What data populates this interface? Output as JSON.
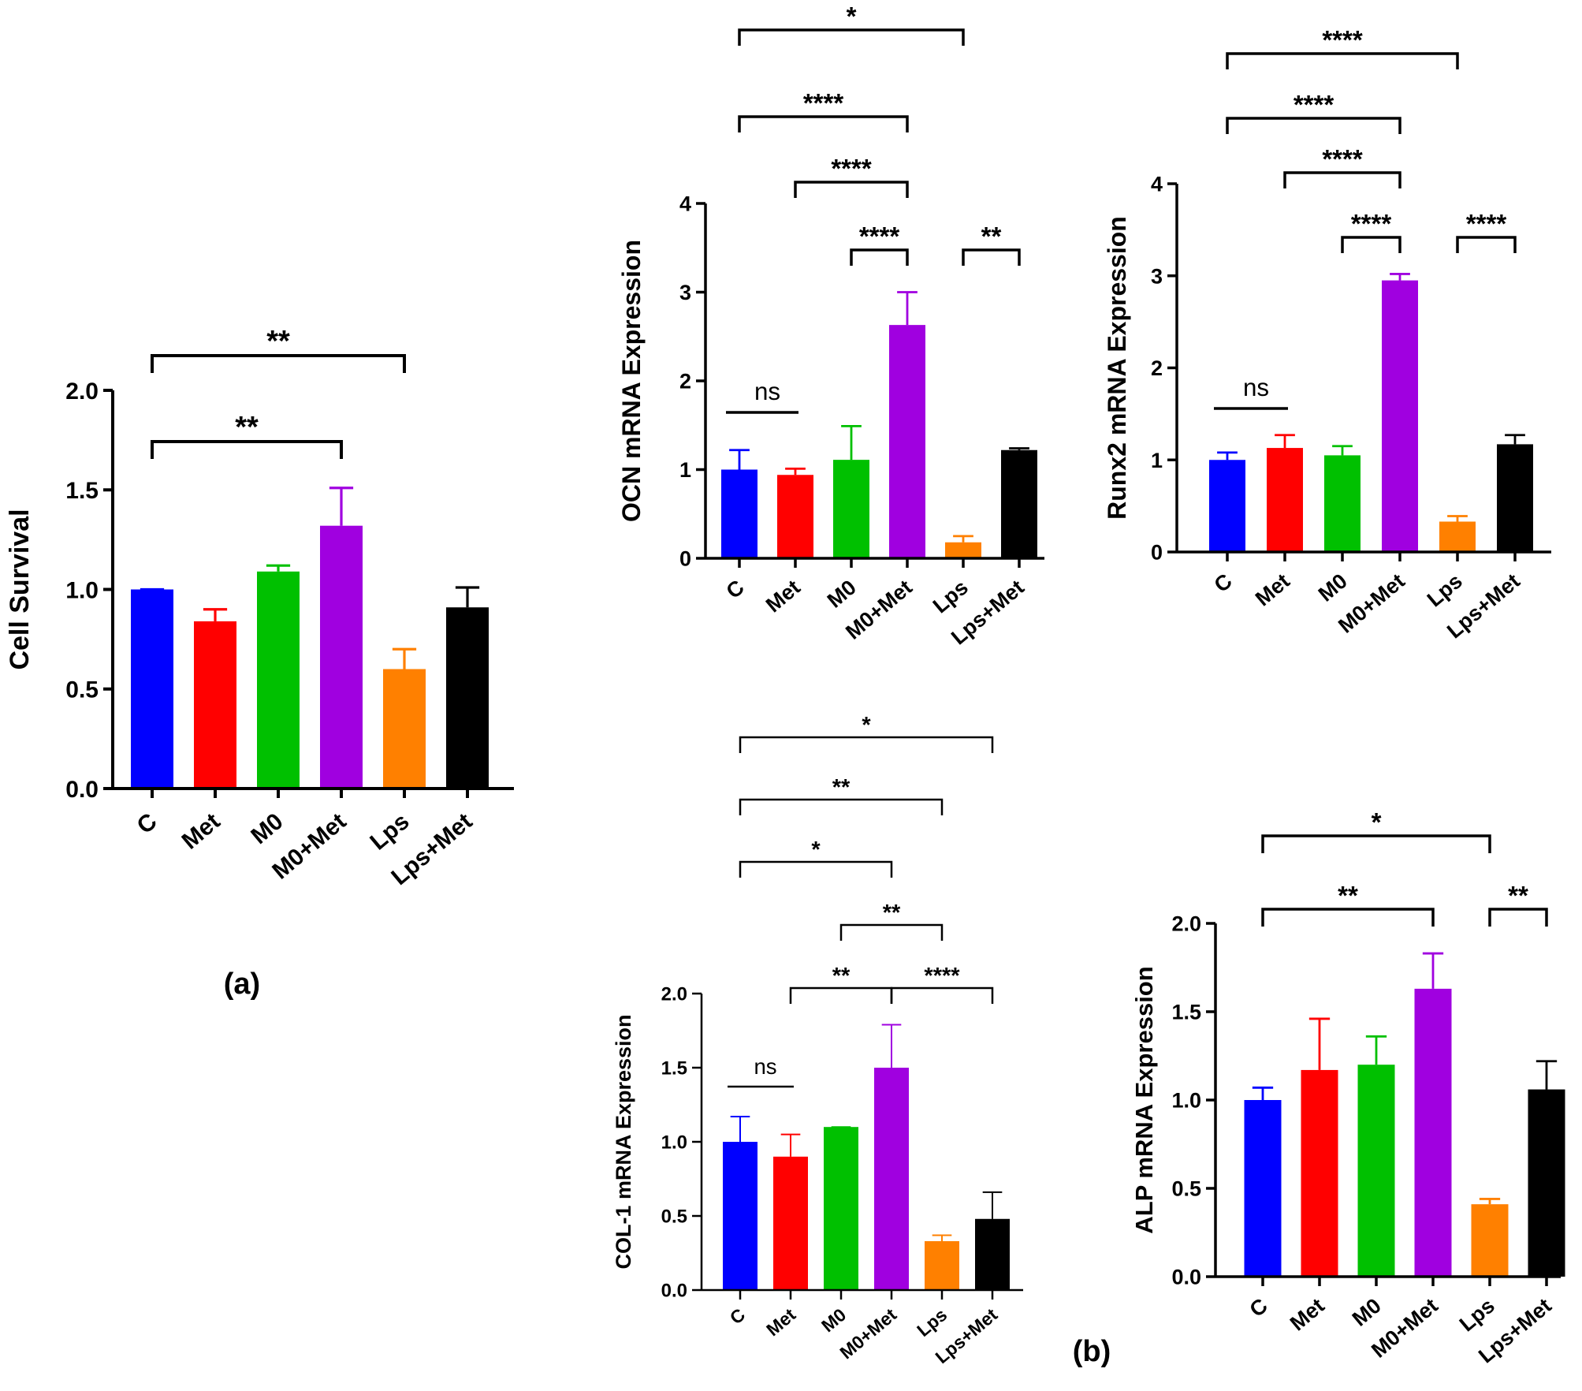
{
  "colors": {
    "C": "#0000ff",
    "Met": "#ff0000",
    "M0": "#00c000",
    "M0+Met": "#a000e0",
    "Lps": "#ff8000",
    "Lps+Met": "#000000",
    "axis": "#000000"
  },
  "panel_labels": {
    "a": "(a)",
    "b": "(b)"
  },
  "chart_data": [
    {
      "id": "cell-survival",
      "type": "bar",
      "title": "",
      "ylabel": "Cell Survival",
      "xlabel": "",
      "categories": [
        "C",
        "Met",
        "M0",
        "M0+Met",
        "Lps",
        "Lps+Met"
      ],
      "values": [
        1.0,
        0.84,
        1.09,
        1.32,
        0.6,
        0.91
      ],
      "errors": [
        0.0,
        0.06,
        0.03,
        0.19,
        0.1,
        0.1
      ],
      "ylim": [
        0,
        2.0
      ],
      "yticks": [
        0,
        0.5,
        1.0,
        1.5,
        2.0
      ],
      "ytick_labels": [
        "0.0",
        "0.5",
        "1.0",
        "1.5",
        "2.0"
      ],
      "significance": [
        {
          "from": 0,
          "to": 4,
          "label": "**"
        },
        {
          "from": 0,
          "to": 3,
          "label": "**"
        }
      ]
    },
    {
      "id": "ocn",
      "type": "bar",
      "title": "",
      "ylabel": "OCN mRNA Expression",
      "xlabel": "",
      "categories": [
        "C",
        "Met",
        "M0",
        "M0+Met",
        "Lps",
        "Lps+Met"
      ],
      "values": [
        1.0,
        0.94,
        1.11,
        2.63,
        0.18,
        1.22
      ],
      "errors": [
        0.22,
        0.07,
        0.38,
        0.37,
        0.07,
        0.02
      ],
      "ylim": [
        0,
        4
      ],
      "yticks": [
        0,
        1,
        2,
        3,
        4
      ],
      "ytick_labels": [
        "0",
        "1",
        "2",
        "3",
        "4"
      ],
      "significance": [
        {
          "from": 0,
          "to": 1,
          "label": "ns",
          "flat": true
        },
        {
          "from": 0,
          "to": 4,
          "label": "*"
        },
        {
          "from": 0,
          "to": 3,
          "label": "****"
        },
        {
          "from": 1,
          "to": 3,
          "label": "****"
        },
        {
          "from": 2,
          "to": 3,
          "label": "****"
        },
        {
          "from": 4,
          "to": 5,
          "label": "**"
        }
      ]
    },
    {
      "id": "runx2",
      "type": "bar",
      "title": "",
      "ylabel": "Runx2 mRNA Expression",
      "xlabel": "",
      "categories": [
        "C",
        "Met",
        "M0",
        "M0+Met",
        "Lps",
        "Lps+Met"
      ],
      "values": [
        1.0,
        1.13,
        1.05,
        2.95,
        0.33,
        1.17
      ],
      "errors": [
        0.08,
        0.14,
        0.1,
        0.07,
        0.06,
        0.1
      ],
      "ylim": [
        0,
        4
      ],
      "yticks": [
        0,
        1,
        2,
        3,
        4
      ],
      "ytick_labels": [
        "0",
        "1",
        "2",
        "3",
        "4"
      ],
      "significance": [
        {
          "from": 0,
          "to": 1,
          "label": "ns",
          "flat": true
        },
        {
          "from": 0,
          "to": 4,
          "label": "****"
        },
        {
          "from": 0,
          "to": 3,
          "label": "****"
        },
        {
          "from": 1,
          "to": 3,
          "label": "****"
        },
        {
          "from": 2,
          "to": 3,
          "label": "****"
        },
        {
          "from": 4,
          "to": 5,
          "label": "****"
        }
      ]
    },
    {
      "id": "col1",
      "type": "bar",
      "title": "",
      "ylabel": "COL-1 mRNA Expression",
      "xlabel": "",
      "categories": [
        "C",
        "Met",
        "M0",
        "M0+Met",
        "Lps",
        "Lps+Met"
      ],
      "values": [
        1.0,
        0.9,
        1.1,
        1.5,
        0.33,
        0.48
      ],
      "errors": [
        0.17,
        0.15,
        0.0,
        0.29,
        0.04,
        0.18
      ],
      "ylim": [
        0,
        2.0
      ],
      "yticks": [
        0,
        0.5,
        1.0,
        1.5,
        2.0
      ],
      "ytick_labels": [
        "0.0",
        "0.5",
        "1.0",
        "1.5",
        "2.0"
      ],
      "significance": [
        {
          "from": 0,
          "to": 1,
          "label": "ns",
          "flat": true
        },
        {
          "from": 0,
          "to": 5,
          "label": "*"
        },
        {
          "from": 0,
          "to": 4,
          "label": "**"
        },
        {
          "from": 0,
          "to": 3,
          "label": "*"
        },
        {
          "from": 2,
          "to": 4,
          "label": "**"
        },
        {
          "from": 1,
          "to": 3,
          "label": "**"
        },
        {
          "from": 3,
          "to": 5,
          "label": "****"
        }
      ]
    },
    {
      "id": "alp",
      "type": "bar",
      "title": "",
      "ylabel": "ALP mRNA Expression",
      "xlabel": "",
      "categories": [
        "C",
        "Met",
        "M0",
        "M0+Met",
        "Lps",
        "Lps+Met"
      ],
      "values": [
        1.0,
        1.17,
        1.2,
        1.63,
        0.41,
        1.06
      ],
      "errors": [
        0.07,
        0.29,
        0.16,
        0.2,
        0.03,
        0.16
      ],
      "ylim": [
        0,
        2.0
      ],
      "yticks": [
        0,
        0.5,
        1.0,
        1.5,
        2.0
      ],
      "ytick_labels": [
        "0.0",
        "0.5",
        "1.0",
        "1.5",
        "2.0"
      ],
      "significance": [
        {
          "from": 0,
          "to": 4,
          "label": "*"
        },
        {
          "from": 0,
          "to": 3,
          "label": "**"
        },
        {
          "from": 4,
          "to": 5,
          "label": "**"
        }
      ]
    }
  ]
}
